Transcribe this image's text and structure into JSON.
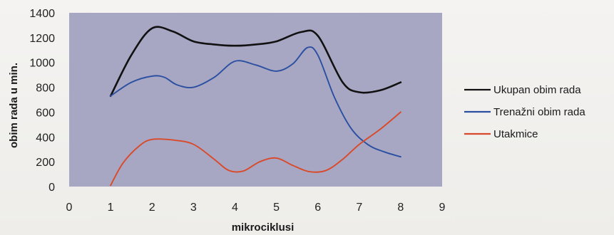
{
  "chart_data": {
    "type": "line",
    "title": "",
    "xlabel": "mikrociklusi",
    "ylabel": "obim rada u min.",
    "xlim": [
      0,
      9
    ],
    "ylim": [
      0,
      1400
    ],
    "x_ticks": [
      0,
      1,
      2,
      3,
      4,
      5,
      6,
      7,
      8,
      9
    ],
    "y_ticks": [
      0,
      200,
      400,
      600,
      800,
      1000,
      1200,
      1400
    ],
    "grid": false,
    "legend_position": "right",
    "plot_background": "#a7a7c4",
    "series": [
      {
        "name": "Ukupan obim rada",
        "color": "#111111",
        "points": [
          [
            1,
            730
          ],
          [
            1.5,
            1060
          ],
          [
            2,
            1275
          ],
          [
            2.5,
            1250
          ],
          [
            3,
            1170
          ],
          [
            3.5,
            1145
          ],
          [
            4,
            1135
          ],
          [
            4.5,
            1145
          ],
          [
            5,
            1170
          ],
          [
            5.6,
            1245
          ],
          [
            6,
            1215
          ],
          [
            6.6,
            840
          ],
          [
            7,
            760
          ],
          [
            7.5,
            775
          ],
          [
            8,
            840
          ]
        ]
      },
      {
        "name": "Trenažni obim rada",
        "color": "#2b4fa0",
        "points": [
          [
            1,
            730
          ],
          [
            1.5,
            840
          ],
          [
            2,
            890
          ],
          [
            2.3,
            880
          ],
          [
            2.6,
            820
          ],
          [
            3,
            800
          ],
          [
            3.5,
            880
          ],
          [
            4,
            1010
          ],
          [
            4.5,
            980
          ],
          [
            5,
            930
          ],
          [
            5.4,
            990
          ],
          [
            5.75,
            1120
          ],
          [
            6,
            1060
          ],
          [
            6.4,
            720
          ],
          [
            6.8,
            470
          ],
          [
            7.2,
            340
          ],
          [
            7.6,
            280
          ],
          [
            8,
            240
          ]
        ]
      },
      {
        "name": "Utakmice",
        "color": "#d94a2a",
        "points": [
          [
            1,
            10
          ],
          [
            1.3,
            190
          ],
          [
            1.7,
            330
          ],
          [
            2,
            380
          ],
          [
            2.5,
            375
          ],
          [
            3,
            340
          ],
          [
            3.5,
            220
          ],
          [
            3.85,
            130
          ],
          [
            4.2,
            125
          ],
          [
            4.6,
            200
          ],
          [
            5,
            230
          ],
          [
            5.4,
            170
          ],
          [
            5.8,
            120
          ],
          [
            6.2,
            130
          ],
          [
            6.6,
            220
          ],
          [
            7,
            340
          ],
          [
            7.5,
            460
          ],
          [
            8,
            600
          ]
        ]
      }
    ]
  }
}
